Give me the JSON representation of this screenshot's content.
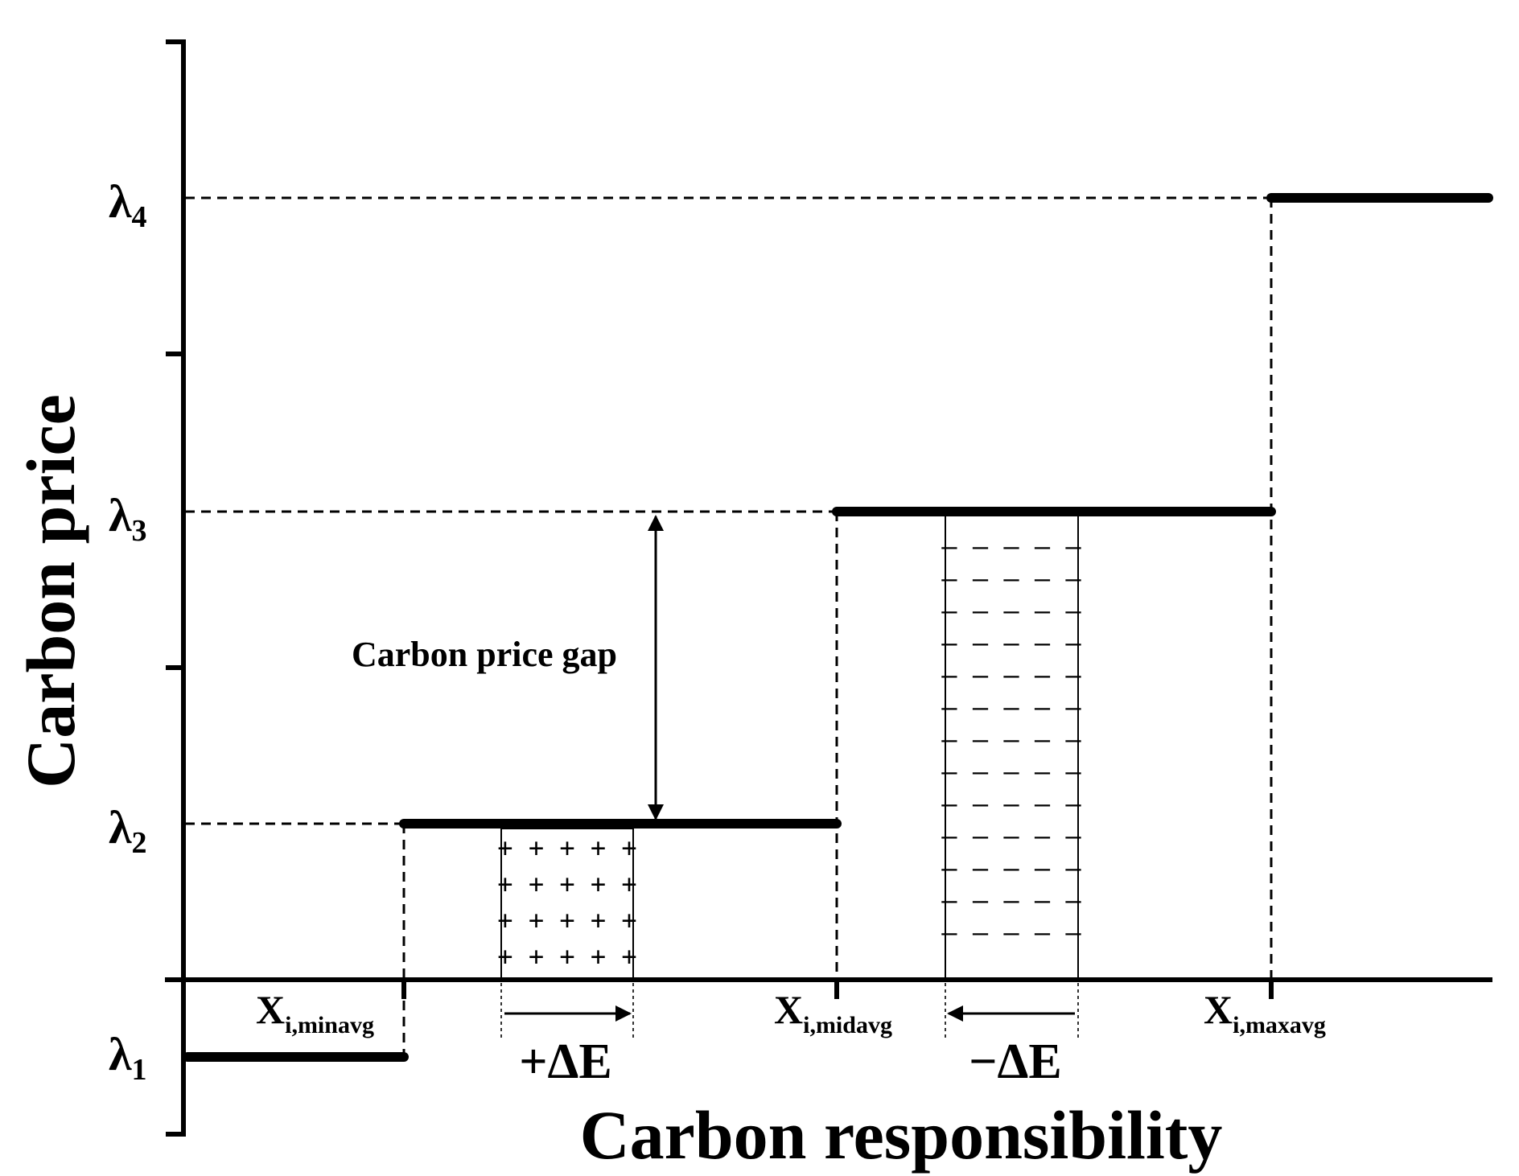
{
  "axes": {
    "y_title": "Carbon price",
    "x_title": "Carbon responsibility"
  },
  "price_levels": [
    {
      "symbol": "λ",
      "subscript": "1"
    },
    {
      "symbol": "λ",
      "subscript": "2"
    },
    {
      "symbol": "λ",
      "subscript": "3"
    },
    {
      "symbol": "λ",
      "subscript": "4"
    }
  ],
  "thresholds": [
    {
      "symbol": "X",
      "subscript": "i,minavg"
    },
    {
      "symbol": "X",
      "subscript": "i,midavg"
    },
    {
      "symbol": "X",
      "subscript": "i,maxavg"
    }
  ],
  "annotations": {
    "gap_label": "Carbon price gap",
    "increase_label": "+ΔE",
    "decrease_label": "−ΔE",
    "plus_mark": "+ + + + +",
    "minus_mark": "– – – – –"
  }
}
